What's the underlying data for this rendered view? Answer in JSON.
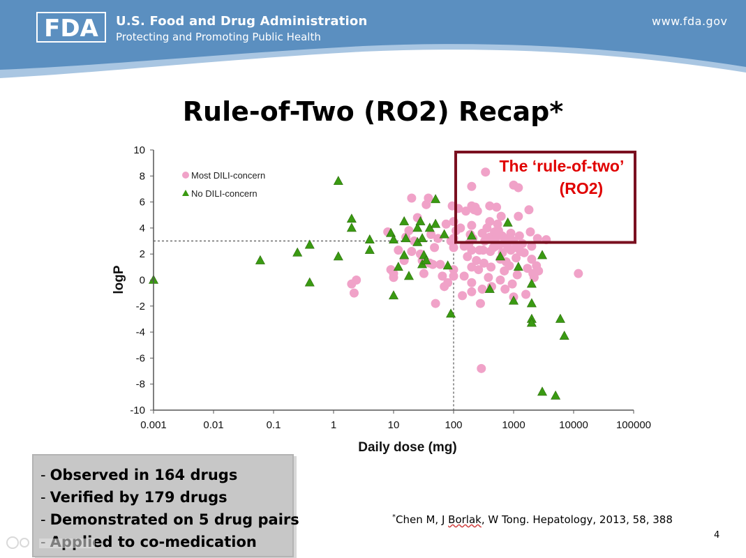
{
  "header": {
    "logo_text": "FDA",
    "agency_name": "U.S. Food and Drug Administration",
    "tagline": "Protecting and Promoting Public Health",
    "website": "www.fda.gov",
    "colors": {
      "band": "#5b8fc0",
      "band_light": "#a9c6e2"
    }
  },
  "slide_title": "Rule-of-Two (RO2) Recap*",
  "chart_data": {
    "type": "scatter",
    "xscale": "log",
    "xlabel": "Daily dose (mg)",
    "ylabel": "logP",
    "xlim": [
      0.001,
      100000
    ],
    "ylim": [
      -10,
      10
    ],
    "xticks": [
      0.001,
      0.01,
      0.1,
      1,
      10,
      100,
      1000,
      10000,
      100000
    ],
    "xtick_labels": [
      "0.001",
      "0.01",
      "0.1",
      "1",
      "10",
      "100",
      "1000",
      "10000",
      "100000"
    ],
    "yticks": [
      -10,
      -8,
      -6,
      -4,
      -2,
      0,
      2,
      4,
      6,
      8,
      10
    ],
    "ytick_labels": [
      "-10",
      "-8",
      "-6",
      "-4",
      "-2",
      "0",
      "2",
      "4",
      "6",
      "8",
      "10"
    ],
    "reference_lines": {
      "dose_mg": 100,
      "logP": 3
    },
    "annotation": {
      "line1": "The ‘rule-of-two’",
      "line2": "(RO2)",
      "region": {
        "x_from": 100,
        "x_to": 100000,
        "y_from": 3,
        "y_to": 10
      },
      "color": "#7a1020",
      "text_color": "#e00000"
    },
    "legend": {
      "position": "upper-left"
    },
    "series": [
      {
        "name": "Most DILI-concern",
        "marker": "circle",
        "color": "#f0a2c8",
        "points": [
          [
            2,
            -0.3
          ],
          [
            2.2,
            -1
          ],
          [
            2.4,
            0
          ],
          [
            8,
            3.7
          ],
          [
            9,
            0.8
          ],
          [
            10,
            0.2
          ],
          [
            10,
            0.5
          ],
          [
            12,
            2.3
          ],
          [
            15,
            1.5
          ],
          [
            16,
            3.3
          ],
          [
            18,
            3.8
          ],
          [
            20,
            6.3
          ],
          [
            20,
            2.2
          ],
          [
            22,
            3
          ],
          [
            25,
            4.8
          ],
          [
            28,
            2
          ],
          [
            30,
            1.5
          ],
          [
            32,
            0.5
          ],
          [
            35,
            5.8
          ],
          [
            38,
            6.3
          ],
          [
            40,
            1.3
          ],
          [
            42,
            3.5
          ],
          [
            45,
            1.2
          ],
          [
            48,
            2.5
          ],
          [
            50,
            -1.8
          ],
          [
            55,
            3.2
          ],
          [
            60,
            1.2
          ],
          [
            65,
            0.3
          ],
          [
            70,
            -0.5
          ],
          [
            75,
            4.3
          ],
          [
            80,
            -0.2
          ],
          [
            90,
            3
          ],
          [
            95,
            5.7
          ],
          [
            100,
            0.8
          ],
          [
            100,
            2.5
          ],
          [
            100,
            4.5
          ],
          [
            100,
            3.2
          ],
          [
            100,
            0.3
          ],
          [
            110,
            3.8
          ],
          [
            120,
            5.5
          ],
          [
            130,
            4
          ],
          [
            140,
            -1.2
          ],
          [
            150,
            0.3
          ],
          [
            150,
            2.6
          ],
          [
            160,
            5.3
          ],
          [
            170,
            1.8
          ],
          [
            180,
            2.8
          ],
          [
            190,
            3.5
          ],
          [
            200,
            7.2
          ],
          [
            200,
            5.7
          ],
          [
            200,
            4.2
          ],
          [
            200,
            2.3
          ],
          [
            200,
            1
          ],
          [
            200,
            -0.2
          ],
          [
            200,
            -0.9
          ],
          [
            210,
            3.2
          ],
          [
            220,
            5.4
          ],
          [
            230,
            5.6
          ],
          [
            240,
            1.5
          ],
          [
            250,
            5.3
          ],
          [
            260,
            0.8
          ],
          [
            270,
            2.3
          ],
          [
            280,
            -1.8
          ],
          [
            290,
            -6.8
          ],
          [
            300,
            -0.7
          ],
          [
            300,
            3.6
          ],
          [
            310,
            2.3
          ],
          [
            320,
            1.3
          ],
          [
            330,
            3
          ],
          [
            340,
            8.3
          ],
          [
            360,
            4
          ],
          [
            380,
            0.2
          ],
          [
            400,
            5.7
          ],
          [
            400,
            4.5
          ],
          [
            400,
            3.3
          ],
          [
            410,
            2.2
          ],
          [
            420,
            1
          ],
          [
            430,
            -0.5
          ],
          [
            450,
            3.3
          ],
          [
            460,
            2.5
          ],
          [
            480,
            3.7
          ],
          [
            500,
            3.2
          ],
          [
            500,
            2.6
          ],
          [
            520,
            5.6
          ],
          [
            540,
            4.3
          ],
          [
            560,
            3.8
          ],
          [
            580,
            2.7
          ],
          [
            600,
            1.6
          ],
          [
            600,
            0
          ],
          [
            620,
            4.9
          ],
          [
            640,
            3.4
          ],
          [
            650,
            2.1
          ],
          [
            700,
            2.9
          ],
          [
            700,
            0.7
          ],
          [
            720,
            -0.7
          ],
          [
            750,
            1.4
          ],
          [
            780,
            3.2
          ],
          [
            800,
            2.5
          ],
          [
            850,
            1.1
          ],
          [
            900,
            3.6
          ],
          [
            900,
            2.3
          ],
          [
            950,
            -0.3
          ],
          [
            1000,
            7.3
          ],
          [
            1000,
            3
          ],
          [
            1000,
            -1.3
          ],
          [
            1100,
            2.5
          ],
          [
            1100,
            1.7
          ],
          [
            1150,
            0.4
          ],
          [
            1200,
            7.1
          ],
          [
            1200,
            4.9
          ],
          [
            1250,
            3.4
          ],
          [
            1300,
            2.2
          ],
          [
            1400,
            2.8
          ],
          [
            1500,
            2.1
          ],
          [
            1600,
            -1.1
          ],
          [
            1700,
            0.9
          ],
          [
            1800,
            5.4
          ],
          [
            1900,
            3.7
          ],
          [
            2000,
            2.6
          ],
          [
            2000,
            1.6
          ],
          [
            2100,
            0.5
          ],
          [
            2200,
            0.2
          ],
          [
            2400,
            1.1
          ],
          [
            2500,
            3.2
          ],
          [
            2600,
            0.7
          ],
          [
            3500,
            3.1
          ],
          [
            12000,
            0.5
          ]
        ]
      },
      {
        "name": "No DILI-concern",
        "marker": "triangle",
        "color": "#3a9a12",
        "points": [
          [
            0.001,
            0
          ],
          [
            0.06,
            1.5
          ],
          [
            0.25,
            2.1
          ],
          [
            0.4,
            2.7
          ],
          [
            0.4,
            -0.2
          ],
          [
            1.2,
            7.6
          ],
          [
            1.2,
            1.8
          ],
          [
            2,
            4.7
          ],
          [
            2,
            4
          ],
          [
            4,
            3.1
          ],
          [
            4,
            2.3
          ],
          [
            9,
            3.6
          ],
          [
            10,
            3.1
          ],
          [
            10,
            -1.2
          ],
          [
            12,
            1
          ],
          [
            15,
            1.9
          ],
          [
            15,
            4.5
          ],
          [
            16,
            3.2
          ],
          [
            18,
            0.3
          ],
          [
            25,
            2.9
          ],
          [
            25,
            4
          ],
          [
            28,
            4.5
          ],
          [
            30,
            3.2
          ],
          [
            30,
            1.2
          ],
          [
            32,
            1.9
          ],
          [
            35,
            1.5
          ],
          [
            40,
            4
          ],
          [
            50,
            6.2
          ],
          [
            50,
            4.3
          ],
          [
            70,
            3.5
          ],
          [
            80,
            1.1
          ],
          [
            90,
            -2.6
          ],
          [
            200,
            3.4
          ],
          [
            400,
            -0.7
          ],
          [
            600,
            1.8
          ],
          [
            800,
            4.4
          ],
          [
            1000,
            -1.6
          ],
          [
            1200,
            1
          ],
          [
            2000,
            -0.3
          ],
          [
            2000,
            -1.8
          ],
          [
            2000,
            -3
          ],
          [
            2000,
            -3.3
          ],
          [
            3000,
            1.9
          ],
          [
            3000,
            -8.6
          ],
          [
            5000,
            -8.9
          ],
          [
            6000,
            -3
          ],
          [
            7000,
            -4.3
          ]
        ]
      }
    ]
  },
  "summary": {
    "items": [
      "Observed in 164 drugs",
      "Verified by 179 drugs",
      "Demonstrated on 5 drug pairs",
      "Applied to co-medication"
    ]
  },
  "citation": {
    "marker": "*",
    "before": "Chen M, J ",
    "underlined": "Borlak",
    "after": ", W Tong. Hepatology, 2013, 58, 388"
  },
  "page_number": "4"
}
